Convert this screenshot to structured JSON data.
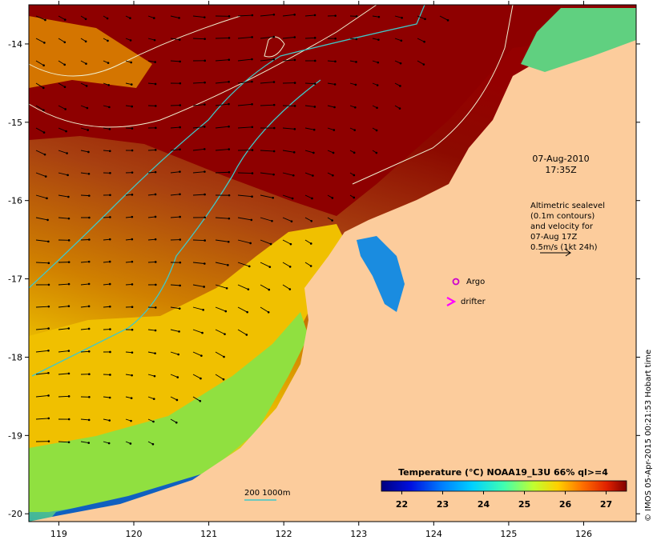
{
  "map": {
    "lon_range": [
      118.6,
      126.7
    ],
    "lat_range": [
      -20.1,
      -13.5
    ],
    "lon_ticks": [
      "119",
      "120",
      "121",
      "122",
      "123",
      "124",
      "125",
      "126"
    ],
    "lat_ticks": [
      "-14",
      "-15",
      "-16",
      "-17",
      "-18",
      "-19",
      "-20"
    ]
  },
  "date_label": "07-Aug-2010",
  "time_label": "17:35Z",
  "sealevel_note": {
    "line1": "Altimetric sealevel",
    "line2": "(0.1m contours)",
    "line3": "and velocity for",
    "line4": "07-Aug 17Z",
    "line5": "0.5m/s (1kt 24h)"
  },
  "legend": {
    "argo": "Argo",
    "drifter": "drifter",
    "argo_color": "#cc00cc",
    "drifter_color": "#ff00ff"
  },
  "bathymetry_label": "200  1000m",
  "colorbar": {
    "title": "Temperature (°C) NOAA19_L3U 66% ql>=4",
    "min": 21.5,
    "max": 27.5,
    "ticks": [
      "22",
      "23",
      "24",
      "25",
      "26",
      "27"
    ]
  },
  "credit": "© IMOS 05-Apr-2015 00:21:53 Hobart time",
  "colors": {
    "land": "#fccc9c",
    "sst_warm": "#990000",
    "sst_cool": "#0a1a8c",
    "bathy_line": "#40c8c8"
  }
}
